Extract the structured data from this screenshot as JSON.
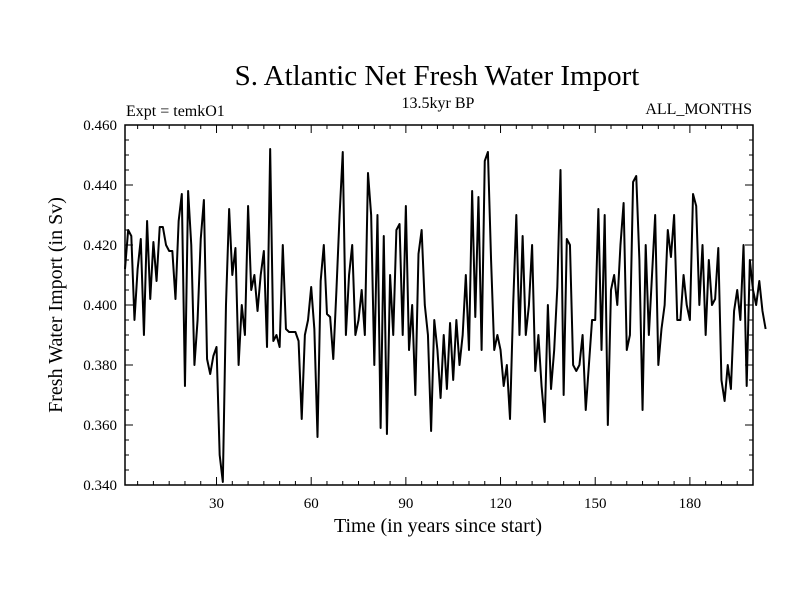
{
  "chart_data": {
    "type": "line",
    "title": "S. Atlantic Net Fresh Water Import",
    "subtitle_left": "Expt = temkO1",
    "subtitle_center": "13.5kyr BP",
    "subtitle_right": "ALL_MONTHS",
    "xlabel": "Time (in years since start)",
    "ylabel": "Fresh Water Import (in Sv)",
    "xlim": [
      1,
      200
    ],
    "ylim": [
      0.34,
      0.46
    ],
    "xticks": [
      30,
      60,
      90,
      120,
      150,
      180
    ],
    "xtick_labels": [
      "30",
      "60",
      "90",
      "120",
      "150",
      "180"
    ],
    "yticks": [
      0.34,
      0.36,
      0.38,
      0.4,
      0.42,
      0.44,
      0.46
    ],
    "ytick_labels": [
      "0.340",
      "0.360",
      "0.380",
      "0.400",
      "0.420",
      "0.440",
      "0.460"
    ],
    "series": [
      {
        "name": "Fresh Water Import",
        "color": "#000000",
        "x_start": 1,
        "x_step": 1,
        "values": [
          0.412,
          0.425,
          0.423,
          0.395,
          0.412,
          0.422,
          0.39,
          0.428,
          0.402,
          0.421,
          0.408,
          0.426,
          0.426,
          0.42,
          0.418,
          0.418,
          0.402,
          0.428,
          0.437,
          0.373,
          0.438,
          0.42,
          0.38,
          0.395,
          0.422,
          0.435,
          0.382,
          0.377,
          0.383,
          0.386,
          0.35,
          0.341,
          0.4,
          0.432,
          0.41,
          0.419,
          0.38,
          0.4,
          0.39,
          0.433,
          0.405,
          0.41,
          0.398,
          0.41,
          0.418,
          0.386,
          0.452,
          0.388,
          0.39,
          0.386,
          0.42,
          0.392,
          0.391,
          0.391,
          0.391,
          0.388,
          0.362,
          0.39,
          0.395,
          0.406,
          0.392,
          0.356,
          0.408,
          0.42,
          0.397,
          0.396,
          0.382,
          0.405,
          0.43,
          0.451,
          0.39,
          0.41,
          0.42,
          0.39,
          0.395,
          0.405,
          0.39,
          0.444,
          0.43,
          0.38,
          0.43,
          0.359,
          0.423,
          0.357,
          0.41,
          0.39,
          0.425,
          0.427,
          0.39,
          0.433,
          0.385,
          0.4,
          0.37,
          0.417,
          0.425,
          0.4,
          0.39,
          0.358,
          0.395,
          0.385,
          0.369,
          0.39,
          0.372,
          0.394,
          0.375,
          0.395,
          0.38,
          0.39,
          0.41,
          0.385,
          0.438,
          0.396,
          0.436,
          0.385,
          0.448,
          0.451,
          0.415,
          0.385,
          0.39,
          0.385,
          0.373,
          0.38,
          0.362,
          0.4,
          0.43,
          0.39,
          0.423,
          0.39,
          0.4,
          0.42,
          0.378,
          0.39,
          0.373,
          0.361,
          0.4,
          0.372,
          0.385,
          0.406,
          0.445,
          0.37,
          0.422,
          0.42,
          0.38,
          0.378,
          0.38,
          0.39,
          0.365,
          0.38,
          0.395,
          0.395,
          0.432,
          0.385,
          0.43,
          0.36,
          0.405,
          0.41,
          0.4,
          0.42,
          0.434,
          0.385,
          0.39,
          0.441,
          0.443,
          0.415,
          0.365,
          0.42,
          0.39,
          0.41,
          0.43,
          0.38,
          0.392,
          0.4,
          0.425,
          0.416,
          0.43,
          0.395,
          0.395,
          0.41,
          0.4,
          0.395,
          0.437,
          0.433,
          0.4,
          0.42,
          0.39,
          0.415,
          0.4,
          0.402,
          0.419,
          0.375,
          0.368,
          0.38,
          0.372,
          0.398,
          0.405,
          0.395,
          0.42,
          0.373,
          0.415,
          0.405,
          0.4,
          0.408,
          0.398,
          0.392
        ]
      }
    ]
  }
}
